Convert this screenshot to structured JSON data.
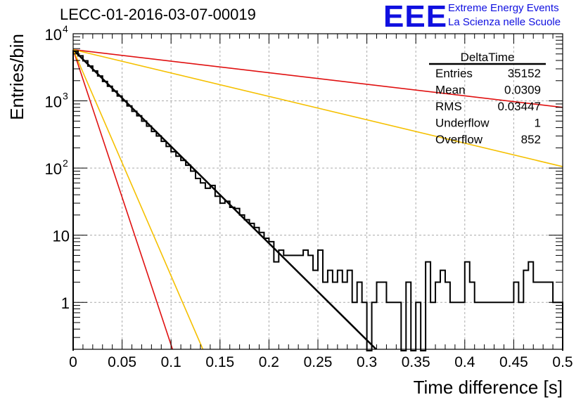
{
  "header": {
    "title": "LECC-01-2016-03-07-00019",
    "logo_text": "EEE",
    "logo_line1": "Extreme Energy Events",
    "logo_line2": "La Scienza nelle Scuole"
  },
  "colors": {
    "histogram": "#000000",
    "fit": "#000000",
    "red_lines": "#e01010",
    "yellow_lines": "#f5c000",
    "logo": "#1010e0",
    "grid": "#aaaaaa"
  },
  "stats_box": {
    "name": "DeltaTime",
    "rows": [
      {
        "label": "Entries",
        "value": "35152"
      },
      {
        "label": "Mean",
        "value": "0.0309"
      },
      {
        "label": "RMS",
        "value": "0.03447"
      },
      {
        "label": "Underflow",
        "value": "1"
      },
      {
        "label": "Overflow",
        "value": "852"
      }
    ]
  },
  "chart_data": {
    "type": "histogram",
    "xlabel": "Time difference [s]",
    "ylabel": "Entries/bin",
    "xlim": [
      0,
      0.5
    ],
    "ylim": [
      0.2,
      10000
    ],
    "yscale": "log",
    "grid": true,
    "x_ticks": [
      "0",
      "0.05",
      "0.1",
      "0.15",
      "0.2",
      "0.25",
      "0.3",
      "0.35",
      "0.4",
      "0.45",
      "0.5"
    ],
    "y_ticks": [
      {
        "value": 1,
        "label": "1"
      },
      {
        "value": 10,
        "label": "10"
      },
      {
        "value": 100,
        "label": "10",
        "exp": "2"
      },
      {
        "value": 1000,
        "label": "10",
        "exp": "3"
      },
      {
        "value": 10000,
        "label": "10",
        "exp": "4"
      }
    ],
    "bin_width": 0.005,
    "histogram_values": [
      5500,
      4700,
      3950,
      3300,
      2800,
      2350,
      1950,
      1650,
      1400,
      1180,
      1000,
      840,
      700,
      600,
      500,
      420,
      350,
      300,
      250,
      210,
      175,
      150,
      130,
      110,
      90,
      70,
      60,
      50,
      55,
      38,
      30,
      32,
      26,
      25,
      20,
      17,
      15,
      13,
      11,
      9,
      8,
      4,
      6,
      5,
      5,
      5,
      5,
      6,
      5,
      3,
      6,
      2,
      3,
      2,
      3,
      2,
      3,
      1,
      2,
      1,
      0,
      1,
      2,
      2,
      1,
      1,
      1,
      0,
      2,
      0,
      1,
      0,
      4,
      1,
      2,
      3,
      2,
      1,
      1,
      1,
      4,
      2,
      1,
      1,
      1,
      1,
      1,
      1,
      1,
      1,
      2,
      1,
      3,
      4,
      2,
      2,
      2,
      2,
      1,
      1
    ],
    "lines": [
      {
        "color": "#000000",
        "y0": 5800,
        "y1": 0.2,
        "x1": 0.3095,
        "width": 2.5
      },
      {
        "color": "#e01010",
        "y0": 5800,
        "y1": 800,
        "x1": 0.5,
        "width": 1.6
      },
      {
        "color": "#f5c000",
        "y0": 5800,
        "y1": 105,
        "x1": 0.5,
        "width": 1.6
      },
      {
        "color": "#e01010",
        "y0": 5800,
        "y1": 0.2,
        "x1": 0.1015,
        "width": 1.6
      },
      {
        "color": "#f5c000",
        "y0": 5800,
        "y1": 0.2,
        "x1": 0.1325,
        "width": 1.6
      }
    ]
  }
}
